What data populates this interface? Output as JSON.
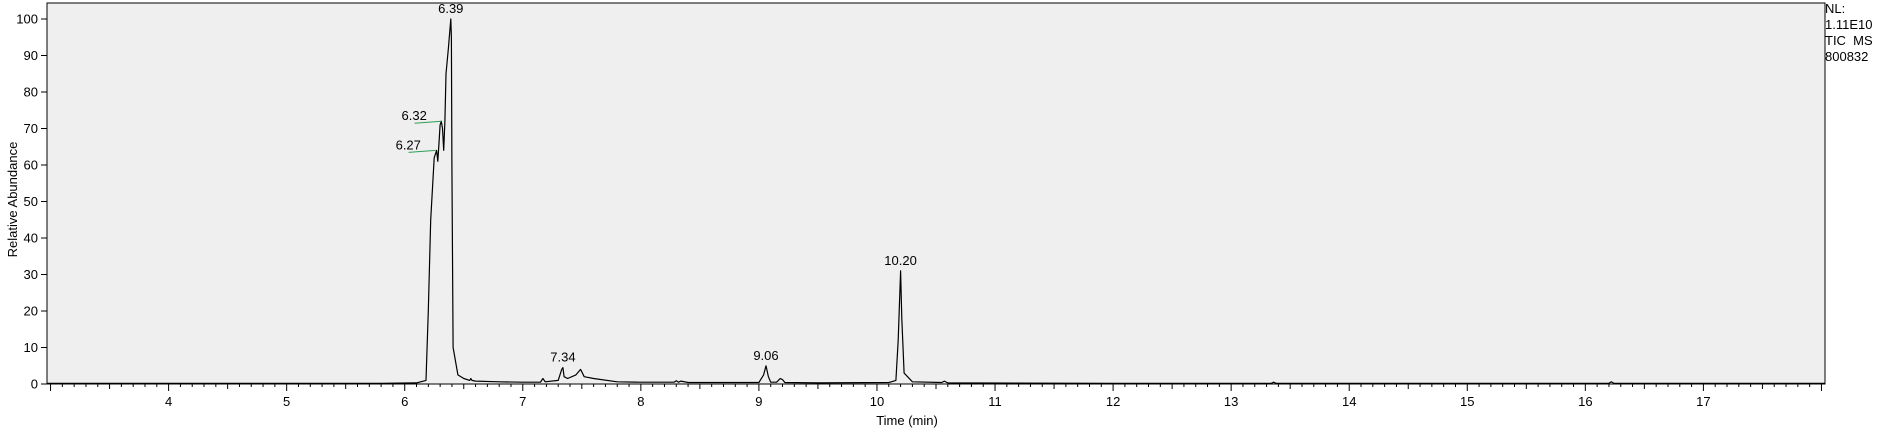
{
  "info": {
    "nl_label": "NL:",
    "nl_value": "1.11E10",
    "trace": "TIC  MS",
    "sample": "800832"
  },
  "chart_data": {
    "type": "line",
    "title": "",
    "xlabel": "Time (min)",
    "ylabel": "Relative Abundance",
    "xlim": [
      2.97,
      18.03
    ],
    "ylim": [
      0,
      100
    ],
    "xticks": [
      4,
      5,
      6,
      7,
      8,
      9,
      10,
      11,
      12,
      13,
      14,
      15,
      16,
      17
    ],
    "yticks": [
      0,
      10,
      20,
      30,
      40,
      50,
      60,
      70,
      80,
      90,
      100
    ],
    "grid": false,
    "legend": "none",
    "colors": {
      "plot_background": "#efefef",
      "trace": "#000000",
      "annotation_line": "#2e9e55"
    },
    "series": [
      {
        "x": [
          2.97,
          4.0,
          5.0,
          5.8,
          6.1,
          6.18,
          6.2,
          6.22,
          6.25,
          6.27,
          6.28,
          6.29,
          6.3,
          6.31,
          6.32,
          6.33,
          6.34,
          6.35,
          6.37,
          6.385,
          6.39,
          6.395,
          6.4,
          6.41,
          6.45,
          6.5,
          6.55,
          6.56,
          6.57,
          6.6,
          6.8,
          7.0,
          7.15,
          7.17,
          7.19,
          7.3,
          7.33,
          7.34,
          7.35,
          7.38,
          7.45,
          7.49,
          7.52,
          7.6,
          7.8,
          8.0,
          8.28,
          8.3,
          8.32,
          8.34,
          8.4,
          9.0,
          9.04,
          9.06,
          9.08,
          9.1,
          9.15,
          9.18,
          9.2,
          9.22,
          9.5,
          10.1,
          10.16,
          10.18,
          10.2,
          10.21,
          10.23,
          10.3,
          10.55,
          10.57,
          10.6,
          12.0,
          13.34,
          13.36,
          13.38,
          16.2,
          16.22,
          16.24,
          17.0,
          18.03
        ],
        "y": [
          0.2,
          0.2,
          0.2,
          0.2,
          0.3,
          1.0,
          20.0,
          45.0,
          62.0,
          64.0,
          61.0,
          66.0,
          71.0,
          72.0,
          70.0,
          64.0,
          72.0,
          85.0,
          92.0,
          98.0,
          100.0,
          95.0,
          60.0,
          10.0,
          2.5,
          1.5,
          1.0,
          1.5,
          1.0,
          0.8,
          0.6,
          0.5,
          0.5,
          1.5,
          0.6,
          1.0,
          4.0,
          4.5,
          2.0,
          1.5,
          2.5,
          4.0,
          2.0,
          1.5,
          0.6,
          0.5,
          0.5,
          0.9,
          0.5,
          0.8,
          0.4,
          0.4,
          2.5,
          5.0,
          2.0,
          0.5,
          0.5,
          1.5,
          1.2,
          0.4,
          0.3,
          0.4,
          1.0,
          12.0,
          31.0,
          18.0,
          3.0,
          0.6,
          0.4,
          0.8,
          0.3,
          0.2,
          0.2,
          0.5,
          0.2,
          0.2,
          0.6,
          0.2,
          0.2,
          0.2
        ]
      }
    ],
    "peak_labels": [
      {
        "text": "6.39",
        "x": 6.39,
        "y": 100
      },
      {
        "text": "6.32",
        "x": 6.32,
        "y": 72
      },
      {
        "text": "6.27",
        "x": 6.27,
        "y": 64
      },
      {
        "text": "7.34",
        "x": 7.34,
        "y": 4.5
      },
      {
        "text": "9.06",
        "x": 9.06,
        "y": 5
      },
      {
        "text": "10.20",
        "x": 10.2,
        "y": 31
      }
    ]
  }
}
